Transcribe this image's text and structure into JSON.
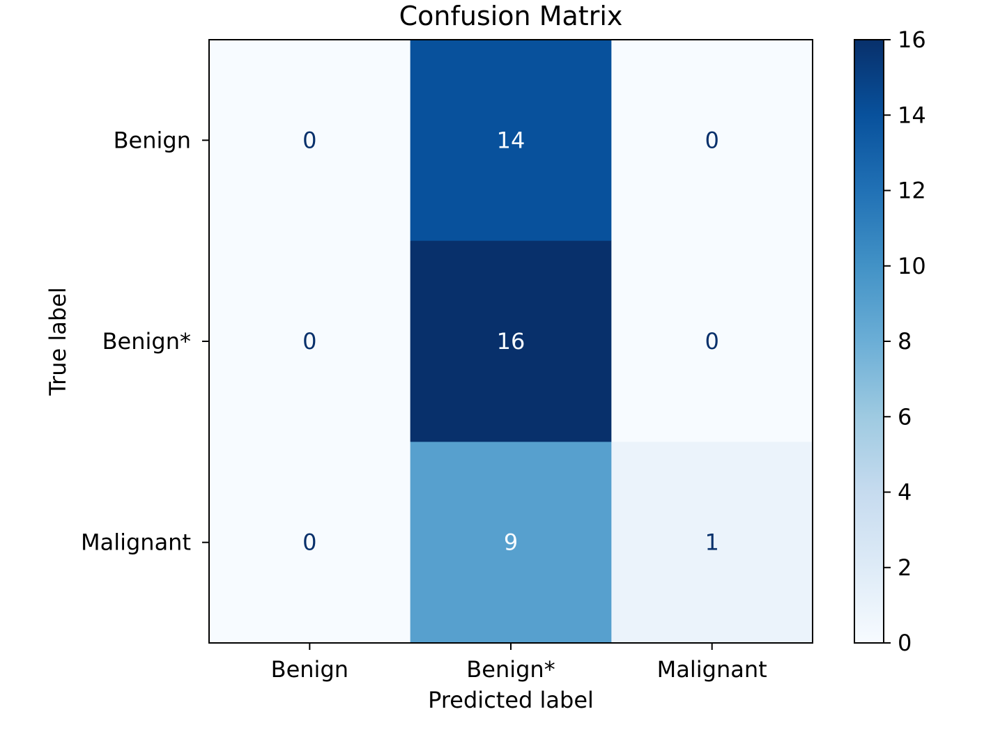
{
  "chart_data": {
    "type": "heatmap",
    "title": "Confusion Matrix",
    "xlabel": "Predicted label",
    "ylabel": "True label",
    "x_categories": [
      "Benign",
      "Benign*",
      "Malignant"
    ],
    "y_categories": [
      "Benign",
      "Benign*",
      "Malignant"
    ],
    "matrix": [
      [
        0,
        14,
        0
      ],
      [
        0,
        16,
        0
      ],
      [
        0,
        9,
        1
      ]
    ],
    "colormap": "Blues",
    "colorbar": {
      "min": 0,
      "max": 16,
      "ticks": [
        0,
        2,
        4,
        6,
        8,
        10,
        12,
        14,
        16
      ]
    }
  }
}
